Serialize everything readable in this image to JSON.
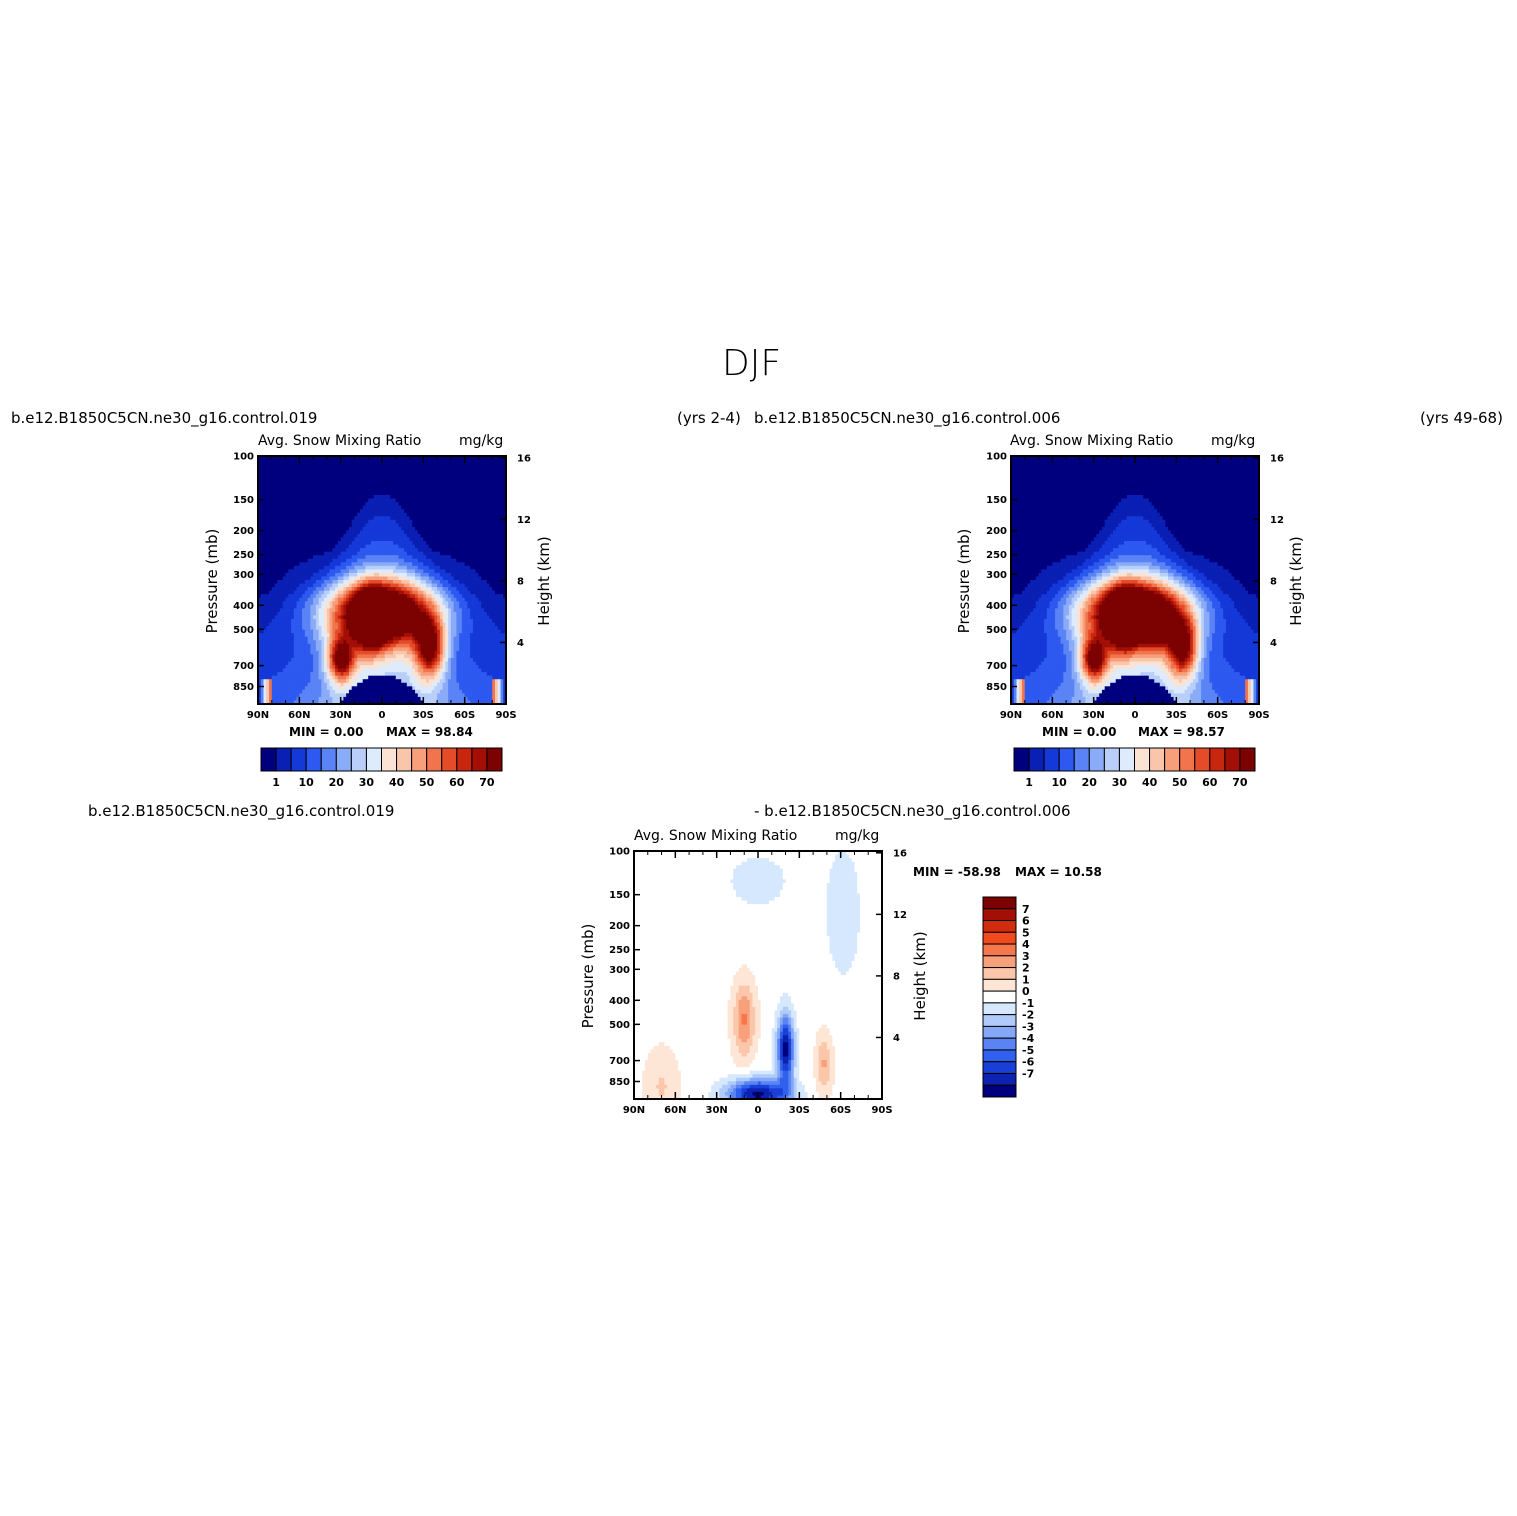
{
  "figure": {
    "title": "DJF"
  },
  "panels": [
    {
      "case_name": "b.e12.B1850C5CN.ne30_g16.control.019",
      "years": "(yrs 2-4)",
      "left_title": "Avg. Snow Mixing Ratio",
      "right_title": "mg/kg",
      "min_text": "MIN =    0.00",
      "max_text": "MAX =   98.84"
    },
    {
      "case_name": "b.e12.B1850C5CN.ne30_g16.control.006",
      "years": "(yrs 49-68)",
      "left_title": "Avg. Snow Mixing Ratio",
      "right_title": "mg/kg",
      "min_text": "MIN =    0.00",
      "max_text": "MAX =   98.57"
    },
    {
      "case_name": "b.e12.B1850C5CN.ne30_g16.control.019",
      "case_name_2": "- b.e12.B1850C5CN.ne30_g16.control.006",
      "left_title": "Avg. Snow Mixing Ratio",
      "right_title": "mg/kg",
      "min_text": "MIN = -58.98",
      "max_text": "MAX =   10.58"
    }
  ],
  "chart_data": [
    {
      "type": "heatmap",
      "title": "Avg. Snow Mixing Ratio",
      "units": "mg/kg",
      "xlabel": "",
      "ylabel": "Pressure (mb)",
      "y2label": "Height (km)",
      "x_ticks": [
        "90N",
        "60N",
        "30N",
        "0",
        "30S",
        "60S",
        "90S"
      ],
      "y_ticks": [
        "100",
        "150",
        "200",
        "250",
        "300",
        "400",
        "500",
        "700",
        "850"
      ],
      "y2_ticks": [
        "16",
        "12",
        "8",
        "4"
      ],
      "ylim": [
        100,
        1000
      ],
      "colorbar_labels": [
        "1",
        "10",
        "20",
        "30",
        "40",
        "50",
        "60",
        "70"
      ],
      "colorbar_colors": [
        "#00007f",
        "#0a1fb4",
        "#1538d8",
        "#2d59f0",
        "#5a84f5",
        "#8aabf8",
        "#b9cffa",
        "#ddebfc",
        "#fbe3d3",
        "#f9c5ab",
        "#f79f7b",
        "#f2744d",
        "#e44b28",
        "#c8260f",
        "#a30f06",
        "#7c0202"
      ],
      "min": 0.0,
      "max": 98.84
    },
    {
      "type": "heatmap",
      "title": "Avg. Snow Mixing Ratio",
      "units": "mg/kg",
      "xlabel": "",
      "ylabel": "Pressure (mb)",
      "y2label": "Height (km)",
      "x_ticks": [
        "90N",
        "60N",
        "30N",
        "0",
        "30S",
        "60S",
        "90S"
      ],
      "y_ticks": [
        "100",
        "150",
        "200",
        "250",
        "300",
        "400",
        "500",
        "700",
        "850"
      ],
      "y2_ticks": [
        "16",
        "12",
        "8",
        "4"
      ],
      "ylim": [
        100,
        1000
      ],
      "colorbar_labels": [
        "1",
        "10",
        "20",
        "30",
        "40",
        "50",
        "60",
        "70"
      ],
      "colorbar_colors": [
        "#00007f",
        "#0a1fb4",
        "#1538d8",
        "#2d59f0",
        "#5a84f5",
        "#8aabf8",
        "#b9cffa",
        "#ddebfc",
        "#fbe3d3",
        "#f9c5ab",
        "#f79f7b",
        "#f2744d",
        "#e44b28",
        "#c8260f",
        "#a30f06",
        "#7c0202"
      ],
      "min": 0.0,
      "max": 98.57
    },
    {
      "type": "heatmap",
      "title": "Avg. Snow Mixing Ratio",
      "units": "mg/kg",
      "xlabel": "",
      "ylabel": "Pressure (mb)",
      "y2label": "Height (km)",
      "x_ticks": [
        "90N",
        "60N",
        "30N",
        "0",
        "30S",
        "60S",
        "90S"
      ],
      "y_ticks": [
        "100",
        "150",
        "200",
        "250",
        "300",
        "400",
        "500",
        "700",
        "850"
      ],
      "y2_ticks": [
        "16",
        "12",
        "8",
        "4"
      ],
      "ylim": [
        100,
        1000
      ],
      "colorbar_labels": [
        "7",
        "6",
        "5",
        "4",
        "3",
        "2",
        "1",
        "0",
        "-1",
        "-2",
        "-3",
        "-4",
        "-5",
        "-6",
        "-7"
      ],
      "colorbar_colors": [
        "#7c0202",
        "#a30f06",
        "#d22c0e",
        "#f04a1f",
        "#f5774b",
        "#f8a07c",
        "#fbc7ab",
        "#fde6d6",
        "#ffffff",
        "#d6e8fd",
        "#b0cbfa",
        "#85a8f6",
        "#5a84f3",
        "#3060ee",
        "#1a3fd6",
        "#0c22b0",
        "#00007f"
      ],
      "min": -58.98,
      "max": 10.58
    }
  ]
}
